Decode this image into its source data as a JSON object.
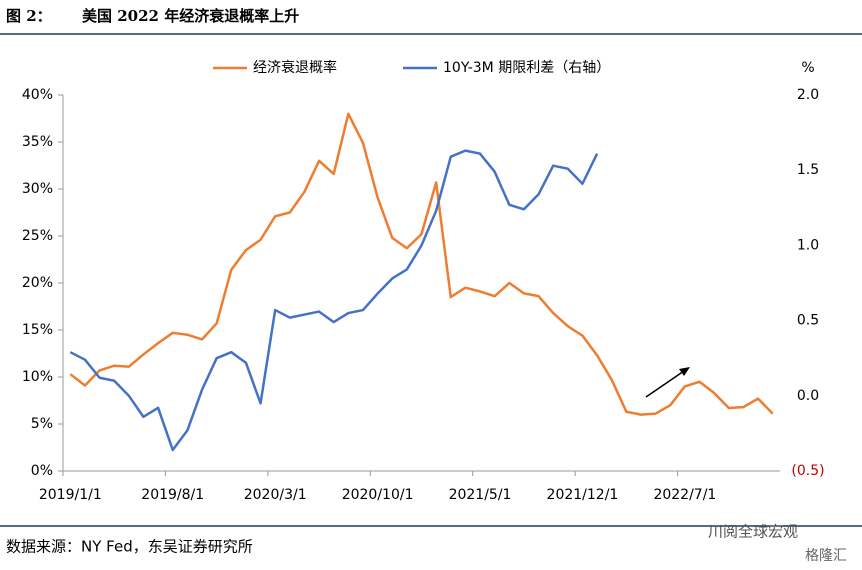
{
  "chart_data": {
    "type": "line",
    "title_label": "图 2：",
    "title": "美国 2022 年经济衰退概率上升",
    "y2_unit_label": "%",
    "source": "数据来源：NY Fed，东吴证券研究所",
    "watermark": "川阅全球宏观",
    "watermark2": "格隆汇",
    "categories": [
      "2019/1/1",
      null,
      null,
      null,
      null,
      null,
      null,
      "2019/8/1",
      null,
      null,
      null,
      null,
      null,
      null,
      "2020/3/1",
      null,
      null,
      null,
      null,
      null,
      null,
      "2020/10/1",
      null,
      null,
      null,
      null,
      null,
      null,
      "2021/5/1",
      null,
      null,
      null,
      null,
      null,
      null,
      "2021/12/1",
      null,
      null,
      null,
      null,
      null,
      null,
      "2022/7/1",
      null,
      null,
      null,
      null,
      null,
      null
    ],
    "series": [
      {
        "name": "经济衰退概率",
        "color": "#ed7d31",
        "values": [
          10.3,
          9.1,
          10.7,
          11.2,
          11.1,
          12.4,
          13.6,
          14.7,
          14.5,
          14.0,
          15.7,
          21.4,
          23.5,
          24.6,
          27.1,
          27.5,
          29.7,
          33.0,
          31.6,
          38.0,
          34.9,
          29.1,
          24.8,
          23.7,
          25.2,
          30.7,
          18.5,
          19.5,
          19.1,
          18.6,
          20.0,
          18.9,
          18.6,
          16.8,
          15.4,
          14.4,
          12.3,
          9.7,
          6.3,
          6.0,
          6.1,
          7.0,
          9.0,
          9.5,
          8.3,
          6.7,
          6.8,
          7.7,
          6.1
        ]
      },
      {
        "name": "10Y-3M 期限利差（右轴）",
        "color": "#4472c4",
        "axis": "y2",
        "values": [
          0.29,
          0.24,
          0.12,
          0.1,
          0.0,
          -0.14,
          -0.08,
          -0.36,
          -0.23,
          0.04,
          0.25,
          0.29,
          0.22,
          -0.05,
          0.57,
          0.52,
          0.54,
          0.56,
          0.49,
          0.55,
          0.57,
          0.68,
          0.78,
          0.84,
          1.0,
          1.23,
          1.59,
          1.63,
          1.61,
          1.49,
          1.27,
          1.24,
          1.34,
          1.53,
          1.51,
          1.41,
          1.61,
          null,
          null,
          null,
          null,
          null,
          null,
          null,
          null,
          null,
          null,
          null,
          null
        ]
      }
    ],
    "ylim": [
      0,
      40
    ],
    "yticks": [
      {
        "value": 0,
        "label": "0%"
      },
      {
        "value": 5,
        "label": "5%"
      },
      {
        "value": 10,
        "label": "10%"
      },
      {
        "value": 15,
        "label": "15%"
      },
      {
        "value": 20,
        "label": "20%"
      },
      {
        "value": 25,
        "label": "25%"
      },
      {
        "value": 30,
        "label": "30%"
      },
      {
        "value": 35,
        "label": "35%"
      },
      {
        "value": 40,
        "label": "40%"
      }
    ],
    "y2lim": [
      -0.5,
      2.0
    ],
    "y2ticks": [
      {
        "value": -0.5,
        "label": "(0.5)"
      },
      {
        "value": 0,
        "label": "0.0"
      },
      {
        "value": 0.5,
        "label": "0.5"
      },
      {
        "value": 1.0,
        "label": "1.0"
      },
      {
        "value": 1.5,
        "label": "1.5"
      },
      {
        "value": 2.0,
        "label": "2.0"
      }
    ],
    "y2tick_negative_color": "#c00000",
    "grid": false,
    "legend": "top"
  }
}
